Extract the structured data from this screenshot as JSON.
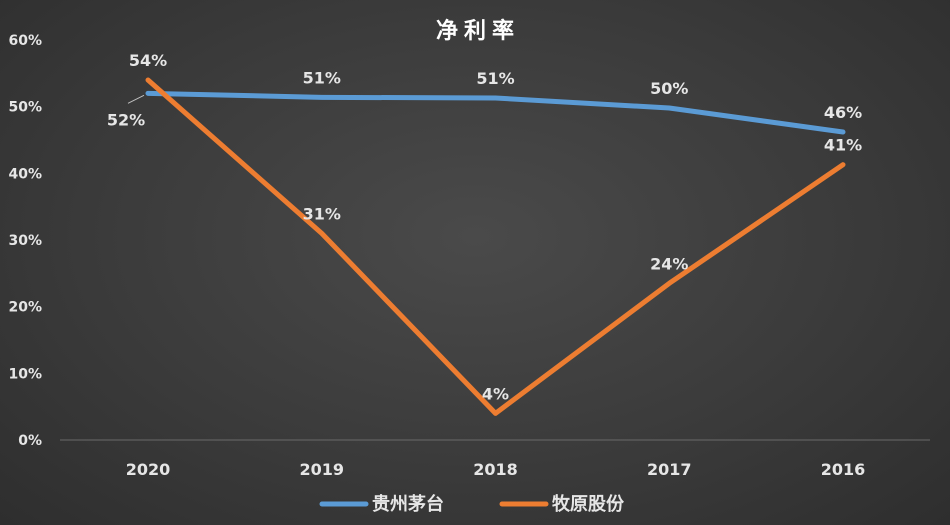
{
  "chart_data": {
    "type": "line",
    "title": "净利率",
    "categories": [
      "2020",
      "2019",
      "2018",
      "2017",
      "2016"
    ],
    "ylim": [
      0,
      0.6
    ],
    "yticks": [
      "0%",
      "10%",
      "20%",
      "30%",
      "40%",
      "50%",
      "60%"
    ],
    "grid": false,
    "legend_position": "bottom",
    "series": [
      {
        "name": "贵州茅台",
        "color": "#5b9bd5",
        "values": [
          0.52,
          0.514,
          0.513,
          0.498,
          0.462
        ],
        "labels": [
          "52%",
          "51%",
          "51%",
          "50%",
          "46%"
        ]
      },
      {
        "name": "牧原股份",
        "color": "#ed7d31",
        "values": [
          0.54,
          0.31,
          0.04,
          0.235,
          0.413
        ],
        "labels": [
          "54%",
          "31%",
          "4%",
          "24%",
          "41%"
        ]
      }
    ]
  }
}
